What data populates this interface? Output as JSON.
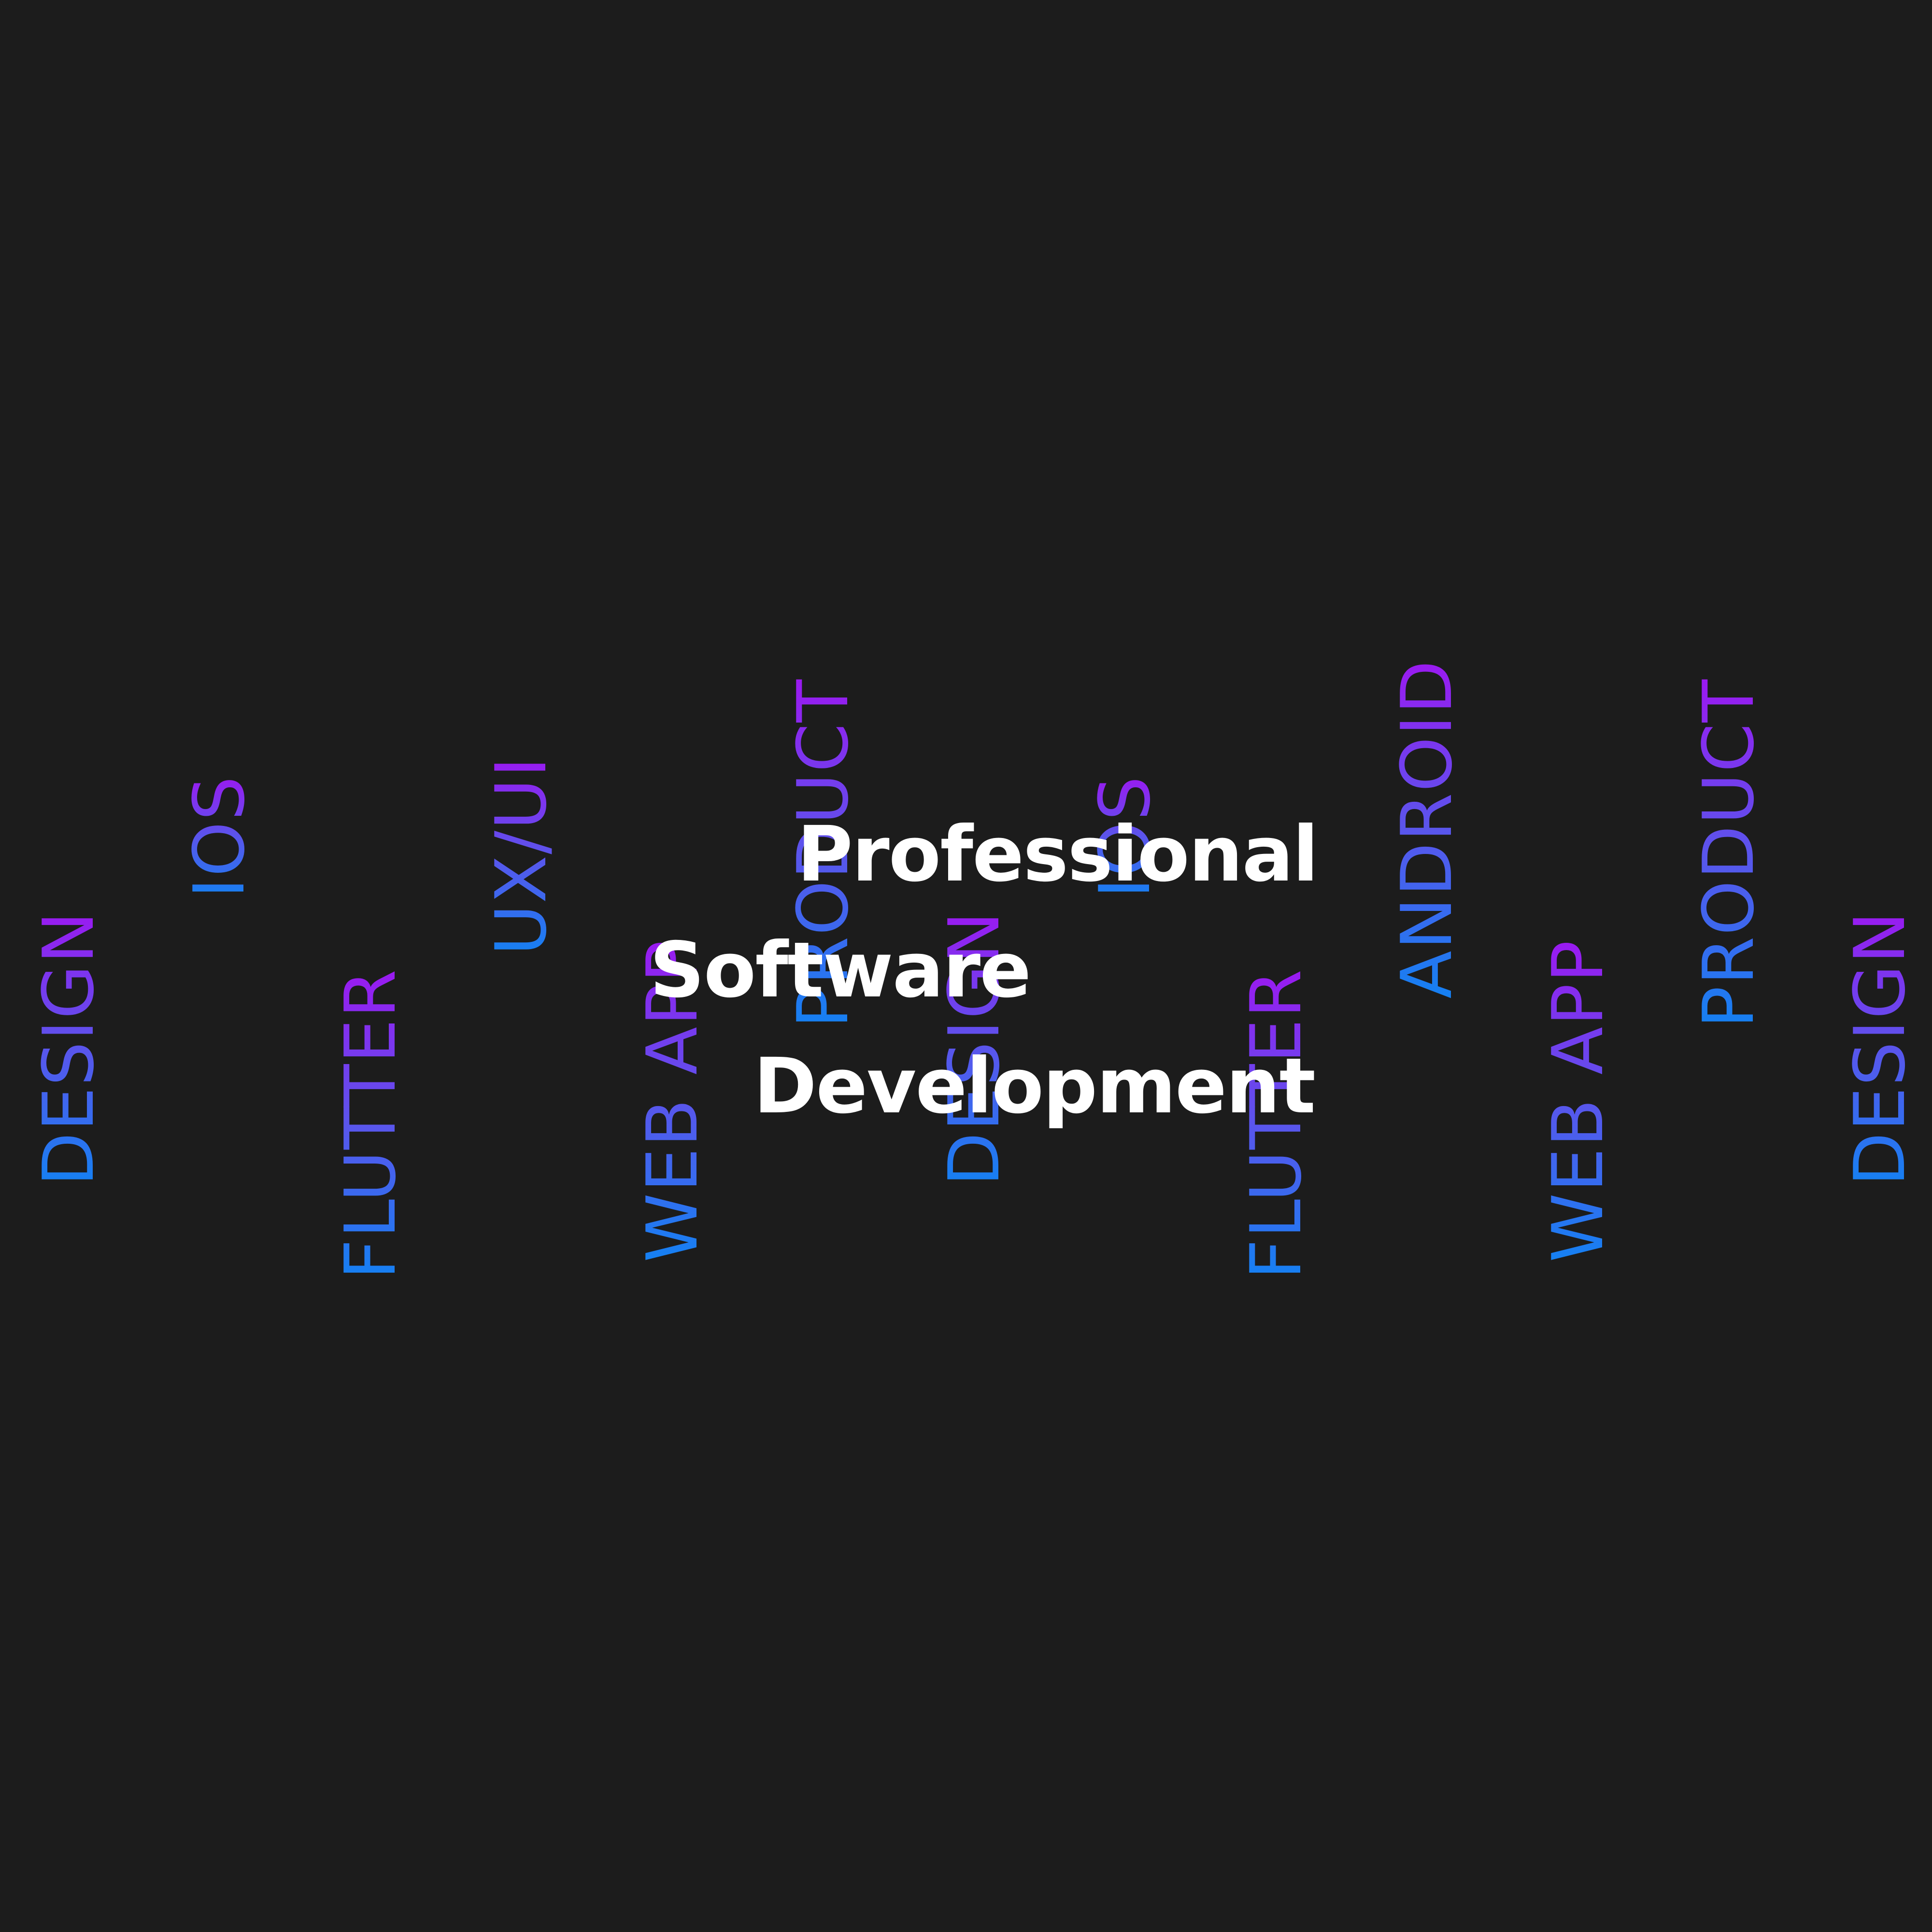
{
  "colors": {
    "background": "#1c1c1c",
    "headline": "#ffffff",
    "gradient_blue": "#1481f2",
    "gradient_violet": "#9b19f0"
  },
  "headline": {
    "line1": "Professional",
    "line2": "Software",
    "line3": "Development"
  },
  "keywords": [
    "DESIGN",
    "IOS",
    "FLUTTER",
    "UX/UI",
    "WEB APP",
    "PRODUCT",
    "DESIGN",
    "IOS",
    "FLUTTER",
    "ANDROID",
    "WEB APP",
    "PRODUCT",
    "DESIGN"
  ]
}
